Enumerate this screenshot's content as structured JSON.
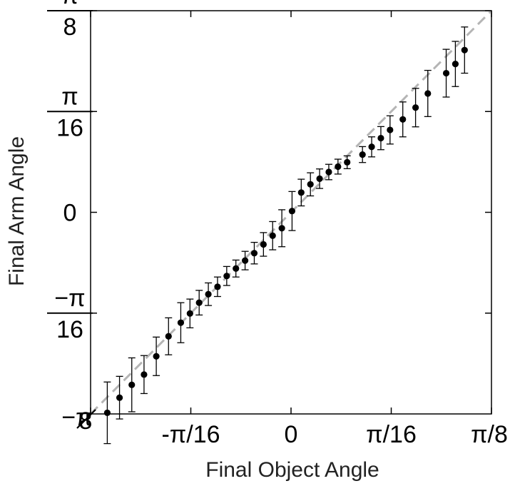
{
  "chart_data": {
    "type": "scatter",
    "title": "",
    "xlabel": "Final Object Angle",
    "ylabel": "Final Arm Angle",
    "xlim": [
      -0.3927,
      0.3927
    ],
    "ylim": [
      -0.3927,
      0.3927
    ],
    "x_ticks": [
      {
        "value": -0.3927,
        "label": "−π"
      },
      {
        "value": -0.19635,
        "label": "-π/16"
      },
      {
        "value": 0,
        "label": "0"
      },
      {
        "value": 0.19635,
        "label": "π/16"
      },
      {
        "value": 0.3927,
        "label": "π/8"
      }
    ],
    "x_corner_denominator": "8",
    "y_ticks": [
      {
        "value": 0.3927,
        "numerator": "π",
        "denominator": "8"
      },
      {
        "value": 0.19635,
        "numerator": "π",
        "denominator": "16"
      },
      {
        "value": 0,
        "numerator": "",
        "denominator": "0"
      },
      {
        "value": -0.19635,
        "numerator": "−π",
        "denominator": "16"
      }
    ],
    "grid": false,
    "reference_line": {
      "style": "dashed",
      "color": "#b5b5b5",
      "from": [
        -0.3927,
        -0.3927
      ],
      "to": [
        0.3927,
        0.3927
      ]
    },
    "marker_color": "#000000",
    "points": [
      {
        "x": -0.36,
        "y": -0.3905,
        "err": 0.06
      },
      {
        "x": -0.336,
        "y": -0.361,
        "err": 0.0415
      },
      {
        "x": -0.312,
        "y": -0.336,
        "err": 0.0525
      },
      {
        "x": -0.288,
        "y": -0.316,
        "err": 0.037
      },
      {
        "x": -0.264,
        "y": -0.2805,
        "err": 0.0375
      },
      {
        "x": -0.24,
        "y": -0.2415,
        "err": 0.036
      },
      {
        "x": -0.216,
        "y": -0.215,
        "err": 0.039
      },
      {
        "x": -0.198,
        "y": -0.197,
        "err": 0.028
      },
      {
        "x": -0.18,
        "y": -0.176,
        "err": 0.024
      },
      {
        "x": -0.162,
        "y": -0.1595,
        "err": 0.022
      },
      {
        "x": -0.144,
        "y": -0.145,
        "err": 0.019
      },
      {
        "x": -0.126,
        "y": -0.124,
        "err": 0.0185
      },
      {
        "x": -0.108,
        "y": -0.1095,
        "err": 0.0165
      },
      {
        "x": -0.09,
        "y": -0.094,
        "err": 0.018
      },
      {
        "x": -0.072,
        "y": -0.0795,
        "err": 0.021
      },
      {
        "x": -0.054,
        "y": -0.0625,
        "err": 0.023
      },
      {
        "x": -0.036,
        "y": -0.0455,
        "err": 0.0275
      },
      {
        "x": -0.018,
        "y": -0.031,
        "err": 0.036
      },
      {
        "x": 0.002,
        "y": 0.0025,
        "err": 0.038
      },
      {
        "x": 0.02,
        "y": 0.0385,
        "err": 0.026
      },
      {
        "x": 0.038,
        "y": 0.0545,
        "err": 0.0225
      },
      {
        "x": 0.056,
        "y": 0.0655,
        "err": 0.019
      },
      {
        "x": 0.074,
        "y": 0.0785,
        "err": 0.015
      },
      {
        "x": 0.092,
        "y": 0.089,
        "err": 0.0145
      },
      {
        "x": 0.11,
        "y": 0.0975,
        "err": 0.0125
      },
      {
        "x": 0.14,
        "y": 0.1125,
        "err": 0.0155
      },
      {
        "x": 0.158,
        "y": 0.1275,
        "err": 0.0195
      },
      {
        "x": 0.176,
        "y": 0.1445,
        "err": 0.0225
      },
      {
        "x": 0.194,
        "y": 0.1605,
        "err": 0.0275
      },
      {
        "x": 0.219,
        "y": 0.181,
        "err": 0.034
      },
      {
        "x": 0.244,
        "y": 0.204,
        "err": 0.0375
      },
      {
        "x": 0.268,
        "y": 0.2315,
        "err": 0.045
      },
      {
        "x": 0.304,
        "y": 0.271,
        "err": 0.0465
      },
      {
        "x": 0.322,
        "y": 0.289,
        "err": 0.044
      },
      {
        "x": 0.34,
        "y": 0.316,
        "err": 0.045
      }
    ]
  }
}
